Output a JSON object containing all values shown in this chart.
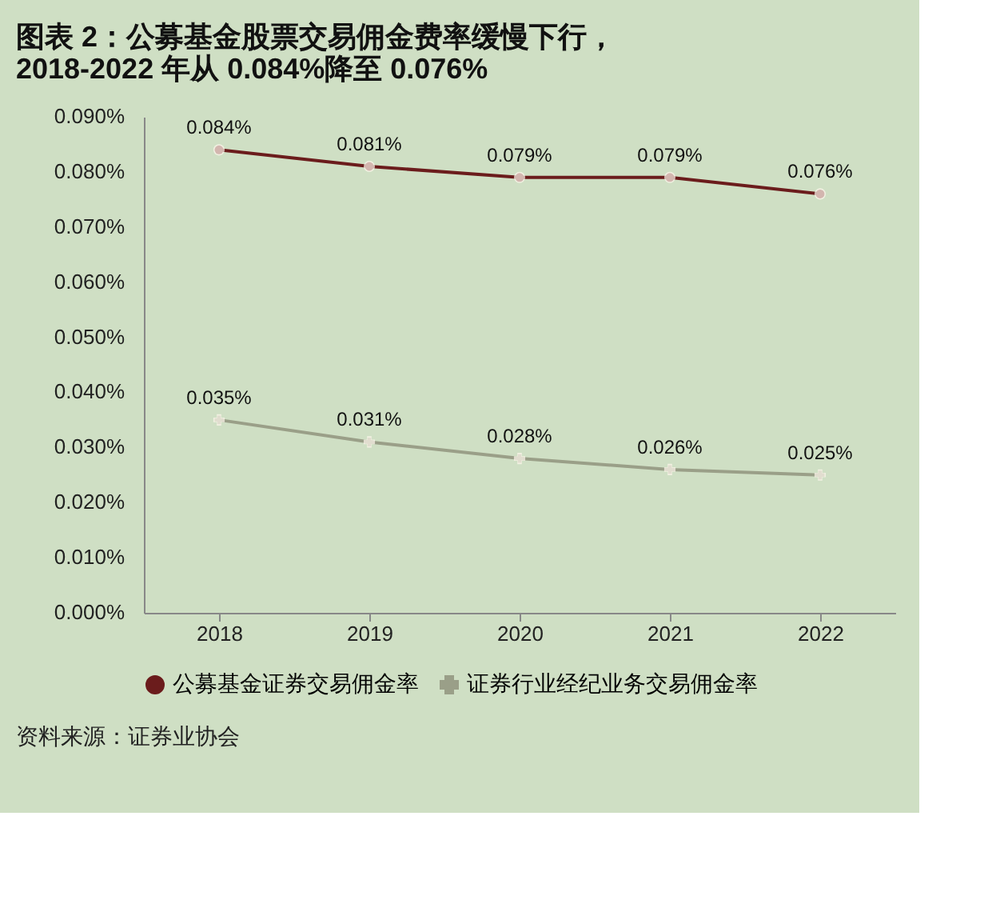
{
  "chart_data": {
    "type": "line",
    "title": "图表 2：公募基金股票交易佣金费率缓慢下行，\n2018-2022 年从 0.084%降至 0.076%",
    "categories": [
      "2018",
      "2019",
      "2020",
      "2021",
      "2022"
    ],
    "series": [
      {
        "name": "公募基金证券交易佣金率",
        "color": "#6b1c1c",
        "marker": "circle",
        "values": [
          0.084,
          0.081,
          0.079,
          0.079,
          0.076
        ],
        "value_labels": [
          "0.084%",
          "0.081%",
          "0.079%",
          "0.079%",
          "0.076%"
        ]
      },
      {
        "name": "证券行业经纪业务交易佣金率",
        "color": "#9a9f88",
        "marker": "cross",
        "values": [
          0.035,
          0.031,
          0.028,
          0.026,
          0.025
        ],
        "value_labels": [
          "0.035%",
          "0.031%",
          "0.028%",
          "0.026%",
          "0.025%"
        ]
      }
    ],
    "ylim": [
      0,
      0.09
    ],
    "yticks": [
      {
        "value": 0,
        "label": "0.000%"
      },
      {
        "value": 0.01,
        "label": "0.010%"
      },
      {
        "value": 0.02,
        "label": "0.020%"
      },
      {
        "value": 0.03,
        "label": "0.030%"
      },
      {
        "value": 0.04,
        "label": "0.040%"
      },
      {
        "value": 0.05,
        "label": "0.050%"
      },
      {
        "value": 0.06,
        "label": "0.060%"
      },
      {
        "value": 0.07,
        "label": "0.070%"
      },
      {
        "value": 0.08,
        "label": "0.080%"
      },
      {
        "value": 0.09,
        "label": "0.090%"
      }
    ],
    "grid": false,
    "legend": "bottom",
    "annotations": [
      "资料来源：证券业协会"
    ]
  }
}
